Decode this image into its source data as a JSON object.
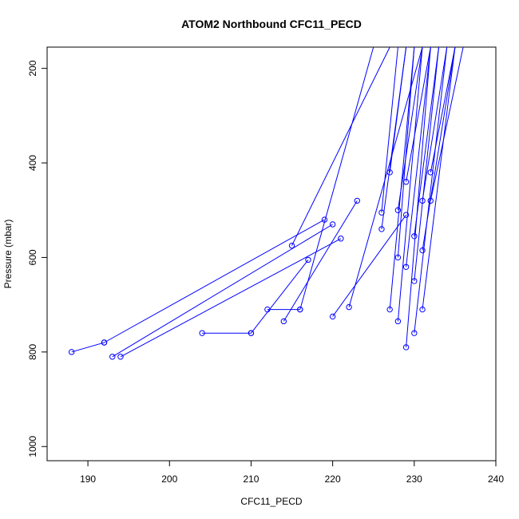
{
  "chart_data": {
    "type": "line",
    "title": "ATOM2 Northbound CFC11_PECD",
    "xlabel": "CFC11_PECD",
    "ylabel": "Pressure (mbar)",
    "xlim": [
      185,
      240
    ],
    "ylim": [
      1030,
      155
    ],
    "y_reversed": true,
    "x_ticks": [
      190,
      200,
      210,
      220,
      230,
      240
    ],
    "y_ticks": [
      200,
      400,
      600,
      800,
      1000
    ],
    "color": "#0000ff",
    "marker": "open-circle",
    "series": [
      {
        "x": [
          188,
          192
        ],
        "y": [
          800,
          780
        ]
      },
      {
        "x": [
          192,
          219
        ],
        "y": [
          780,
          520
        ]
      },
      {
        "x": [
          193,
          220
        ],
        "y": [
          810,
          530
        ]
      },
      {
        "x": [
          194,
          221
        ],
        "y": [
          810,
          560
        ]
      },
      {
        "x": [
          204,
          210
        ],
        "y": [
          760,
          760
        ]
      },
      {
        "x": [
          210,
          217
        ],
        "y": [
          760,
          605
        ]
      },
      {
        "x": [
          212,
          216
        ],
        "y": [
          710,
          710
        ]
      },
      {
        "x": [
          214,
          223
        ],
        "y": [
          735,
          480
        ]
      },
      {
        "x": [
          216,
          225
        ],
        "y": [
          710,
          155
        ]
      },
      {
        "x": [
          215,
          227
        ],
        "y": [
          575,
          155
        ]
      },
      {
        "x": [
          220,
          229
        ],
        "y": [
          725,
          510
        ]
      },
      {
        "x": [
          222,
          231
        ],
        "y": [
          705,
          155
        ]
      },
      {
        "x": [
          226,
          228
        ],
        "y": [
          505,
          155
        ]
      },
      {
        "x": [
          226,
          229
        ],
        "y": [
          540,
          155
        ]
      },
      {
        "x": [
          227,
          229
        ],
        "y": [
          420,
          155
        ]
      },
      {
        "x": [
          227,
          230
        ],
        "y": [
          710,
          155
        ]
      },
      {
        "x": [
          228,
          230
        ],
        "y": [
          600,
          155
        ]
      },
      {
        "x": [
          228,
          231
        ],
        "y": [
          500,
          155
        ]
      },
      {
        "x": [
          228,
          231
        ],
        "y": [
          735,
          155
        ]
      },
      {
        "x": [
          229,
          232
        ],
        "y": [
          440,
          155
        ]
      },
      {
        "x": [
          229,
          232
        ],
        "y": [
          790,
          155
        ]
      },
      {
        "x": [
          229,
          232
        ],
        "y": [
          620,
          155
        ]
      },
      {
        "x": [
          230,
          233
        ],
        "y": [
          555,
          155
        ]
      },
      {
        "x": [
          230,
          233
        ],
        "y": [
          650,
          155
        ]
      },
      {
        "x": [
          230,
          234
        ],
        "y": [
          760,
          155
        ]
      },
      {
        "x": [
          231,
          234
        ],
        "y": [
          480,
          155
        ]
      },
      {
        "x": [
          231,
          235
        ],
        "y": [
          585,
          155
        ]
      },
      {
        "x": [
          231,
          235
        ],
        "y": [
          710,
          155
        ]
      },
      {
        "x": [
          232,
          236
        ],
        "y": [
          480,
          155
        ]
      },
      {
        "x": [
          232,
          235
        ],
        "y": [
          420,
          155
        ]
      }
    ]
  }
}
